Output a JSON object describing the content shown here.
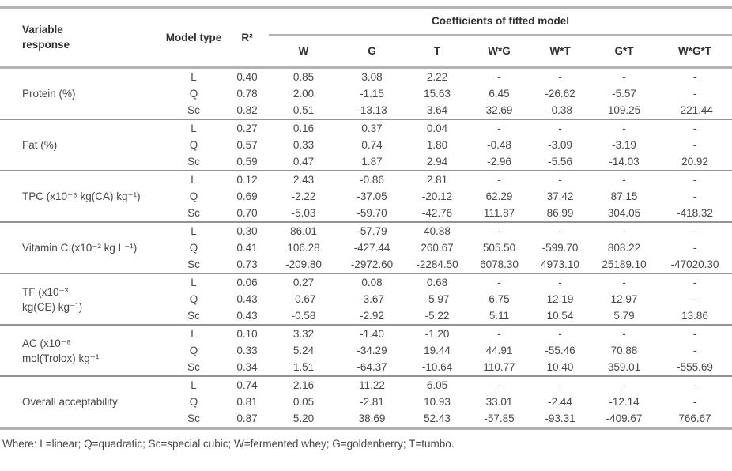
{
  "header": {
    "variable_response_lines": [
      "Variable",
      "response"
    ],
    "model_type": "Model type",
    "r2": "R²",
    "coefficients_title": "Coefficients of fitted model",
    "coefficient_columns": [
      "W",
      "G",
      "T",
      "W*G",
      "W*T",
      "G*T",
      "W*G*T"
    ]
  },
  "groups": [
    {
      "label_lines": [
        "Protein (%)"
      ],
      "rows": [
        {
          "model": "L",
          "r2": "0.40",
          "coefficients": [
            "0.85",
            "3.08",
            "2.22",
            "-",
            "-",
            "-",
            "-"
          ]
        },
        {
          "model": "Q",
          "r2": "0.78",
          "coefficients": [
            "2.00",
            "-1.15",
            "15.63",
            "6.45",
            "-26.62",
            "-5.57",
            "-"
          ]
        },
        {
          "model": "Sc",
          "r2": "0.82",
          "coefficients": [
            "0.51",
            "-13.13",
            "3.64",
            "32.69",
            "-0.38",
            "109.25",
            "-221.44"
          ]
        }
      ]
    },
    {
      "label_lines": [
        "Fat (%)"
      ],
      "rows": [
        {
          "model": "L",
          "r2": "0.27",
          "coefficients": [
            "0.16",
            "0.37",
            "0.04",
            "-",
            "-",
            "-",
            "-"
          ]
        },
        {
          "model": "Q",
          "r2": "0.57",
          "coefficients": [
            "0.33",
            "0.74",
            "1.80",
            "-0.48",
            "-3.09",
            "-3.19",
            "-"
          ]
        },
        {
          "model": "Sc",
          "r2": "0.59",
          "coefficients": [
            "0.47",
            "1.87",
            "2.94",
            "-2.96",
            "-5.56",
            "-14.03",
            "20.92"
          ]
        }
      ]
    },
    {
      "label_lines": [
        "TPC (x10⁻⁵ kg(CA) kg⁻¹)"
      ],
      "rows": [
        {
          "model": "L",
          "r2": "0.12",
          "coefficients": [
            "2.43",
            "-0.86",
            "2.81",
            "-",
            "-",
            "-",
            "-"
          ]
        },
        {
          "model": "Q",
          "r2": "0.69",
          "coefficients": [
            "-2.22",
            "-37.05",
            "-20.12",
            "62.29",
            "37.42",
            "87.15",
            "-"
          ]
        },
        {
          "model": "Sc",
          "r2": "0.70",
          "coefficients": [
            "-5.03",
            "-59.70",
            "-42.76",
            "111.87",
            "86.99",
            "304.05",
            "-418.32"
          ]
        }
      ]
    },
    {
      "label_lines": [
        "Vitamin C (x10⁻² kg L⁻¹)"
      ],
      "rows": [
        {
          "model": "L",
          "r2": "0.30",
          "coefficients": [
            "86.01",
            "-57.79",
            "40.88",
            "-",
            "-",
            "-",
            "-"
          ]
        },
        {
          "model": "Q",
          "r2": "0.41",
          "coefficients": [
            "106.28",
            "-427.44",
            "260.67",
            "505.50",
            "-599.70",
            "808.22",
            "-"
          ]
        },
        {
          "model": "Sc",
          "r2": "0.73",
          "coefficients": [
            "-209.80",
            "-2972.60",
            "-2284.50",
            "6078.30",
            "4973.10",
            "25189.10",
            "-47020.30"
          ]
        }
      ]
    },
    {
      "label_lines": [
        "TF (x10⁻³",
        "kg(CE) kg⁻¹)"
      ],
      "rows": [
        {
          "model": "L",
          "r2": "0.06",
          "coefficients": [
            "0.27",
            "0.08",
            "0.68",
            "-",
            "-",
            "-",
            "-"
          ]
        },
        {
          "model": "Q",
          "r2": "0.43",
          "coefficients": [
            "-0.67",
            "-3.67",
            "-5.97",
            "6.75",
            "12.19",
            "12.97",
            "-"
          ]
        },
        {
          "model": "Sc",
          "r2": "0.43",
          "coefficients": [
            "-0.58",
            "-2.92",
            "-5.22",
            "5.11",
            "10.54",
            "5.79",
            "13.86"
          ]
        }
      ]
    },
    {
      "label_lines": [
        "AC (x10⁻⁸",
        "mol(Trolox) kg⁻¹"
      ],
      "rows": [
        {
          "model": "L",
          "r2": "0.10",
          "coefficients": [
            "3.32",
            "-1.40",
            "-1.20",
            "-",
            "-",
            "-",
            "-"
          ]
        },
        {
          "model": "Q",
          "r2": "0.33",
          "coefficients": [
            "5.24",
            "-34.29",
            "19.44",
            "44.91",
            "-55.46",
            "70.88",
            "-"
          ]
        },
        {
          "model": "Sc",
          "r2": "0.34",
          "coefficients": [
            "1.51",
            "-64.37",
            "-10.64",
            "110.77",
            "10.40",
            "359.01",
            "-555.69"
          ]
        }
      ]
    },
    {
      "label_lines": [
        "Overall acceptability"
      ],
      "rows": [
        {
          "model": "L",
          "r2": "0.74",
          "coefficients": [
            "2.16",
            "11.22",
            "6.05",
            "-",
            "-",
            "-",
            "-"
          ]
        },
        {
          "model": "Q",
          "r2": "0.81",
          "coefficients": [
            "0.05",
            "-2.81",
            "10.93",
            "33.01",
            "-2.44",
            "-12.14",
            "-"
          ]
        },
        {
          "model": "Sc",
          "r2": "0.87",
          "coefficients": [
            "5.20",
            "38.69",
            "52.43",
            "-57.85",
            "-93.31",
            "-409.67",
            "766.67"
          ]
        }
      ]
    }
  ],
  "footnote": "Where: L=linear; Q=quadratic; Sc=special cubic; W=fermented whey; G=goldenberry; T=tumbo.",
  "colors": {
    "rule_heavy": "#b3b3b3",
    "rule_group": "#949494",
    "text": "#474747"
  }
}
